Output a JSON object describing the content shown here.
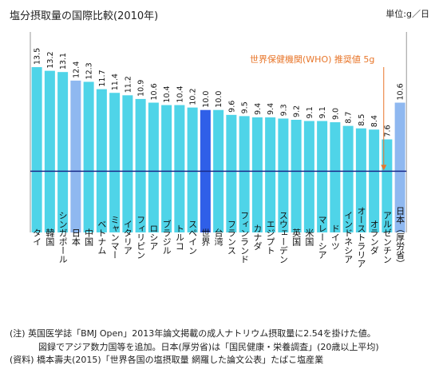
{
  "title": "塩分摂取量の国際比較(2010年)",
  "unit": "単位:g／日",
  "chart_data": {
    "type": "bar",
    "categories": [
      "タイ",
      "韓国",
      "シンガポール",
      "日本",
      "中国",
      "ベトナム",
      "ミャンマー",
      "イタリア",
      "フィリピン",
      "ロシア",
      "ブラジル",
      "トルコ",
      "スペイン",
      "世界",
      "台湾",
      "フランス",
      "フィンランド",
      "カナダ",
      "エジプト",
      "スウェーデン",
      "英国",
      "米国",
      "マレーシア",
      "ドイツ",
      "インドネシア",
      "オーストラリア",
      "オランダ",
      "アルゼンチン",
      "日本（厚労省）"
    ],
    "values": [
      13.5,
      13.2,
      13.1,
      12.4,
      12.3,
      11.7,
      11.4,
      11.2,
      10.9,
      10.6,
      10.4,
      10.4,
      10.2,
      10.0,
      10.0,
      9.6,
      9.5,
      9.4,
      9.4,
      9.3,
      9.2,
      9.1,
      9.1,
      9.0,
      8.7,
      8.5,
      8.4,
      7.6,
      10.6
    ],
    "value_labels": [
      "13.5",
      "13.2",
      "13.1",
      "12.4",
      "12.3",
      "11.7",
      "11.4",
      "11.2",
      "10.9",
      "10.6",
      "10.4",
      "10.4",
      "10.2",
      "10.0",
      "10.0",
      "9.6",
      "9.5",
      "9.4",
      "9.4",
      "9.3",
      "9.2",
      "9.1",
      "9.1",
      "9.0",
      "8.7",
      "8.5",
      "8.4",
      "7.6",
      "10.6"
    ],
    "highlight": {
      "日本": "#8fb8f0",
      "世界": "#2f5fe8",
      "日本（厚労省）": "#8fb8f0"
    },
    "default_color": "#4fd4e8",
    "reference_line": {
      "value": 5,
      "label": "世界保健機関(WHO) 推奨値 5g",
      "color": "#1a2a8a",
      "label_color": "#e8762a"
    },
    "ylim": [
      0,
      14
    ]
  },
  "notes": [
    "(注) 英国医学誌「BMJ Open」2013年論文掲載の成人ナトリウム摂取量に2.54を掛けた値。",
    "図録でアジア数力国等を追加。日本(厚労省)は「国民健康・栄養調査」(20歳以上平均)",
    "(資料) 橋本壽夫(2015)「世界各国の塩摂取量 網羅した論文公表」たばこ塩産業"
  ]
}
